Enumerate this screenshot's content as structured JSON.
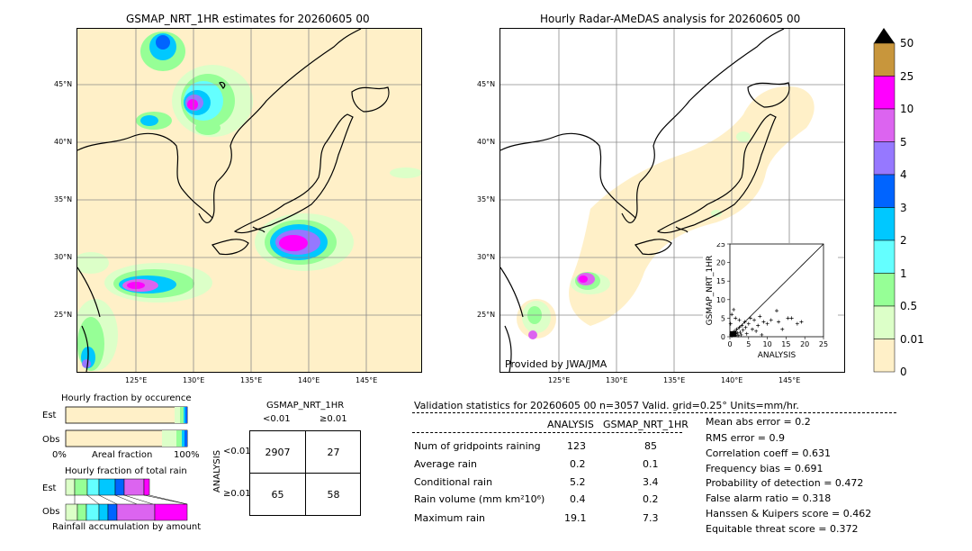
{
  "left_map": {
    "title": "GSMAP_NRT_1HR estimates for 20260605 00",
    "lat_labels": [
      "45°N",
      "40°N",
      "35°N",
      "30°N",
      "25°N"
    ],
    "lon_labels": [
      "125°E",
      "130°E",
      "135°E",
      "140°E",
      "145°E"
    ]
  },
  "right_map": {
    "title": "Hourly Radar-AMeDAS analysis for 20260605 00",
    "lat_labels": [
      "45°N",
      "40°N",
      "35°N",
      "30°N",
      "25°N"
    ],
    "lon_labels": [
      "125°E",
      "130°E",
      "135°E",
      "140°E",
      "145°E"
    ],
    "credit": "Provided by JWA/JMA"
  },
  "colorbar": {
    "labels": [
      "50",
      "25",
      "10",
      "5",
      "4",
      "3",
      "2",
      "1",
      "0.5",
      "0.01",
      "0"
    ],
    "colors": [
      "#c8963c",
      "#ff00ff",
      "#dc64f0",
      "#9678ff",
      "#0064ff",
      "#00c8ff",
      "#64ffff",
      "#96ff96",
      "#dcffc8",
      "#fff0c8"
    ],
    "extend_color": "#000000"
  },
  "scatter": {
    "xlabel": "ANALYSIS",
    "ylabel": "GSMAP_NRT_1HR",
    "ticks": [
      "0",
      "5",
      "10",
      "15",
      "20",
      "25"
    ]
  },
  "occurrence": {
    "title": "Hourly fraction by occurence",
    "rows": [
      "Est",
      "Obs"
    ],
    "axis_left": "0%",
    "axis_mid": "Areal fraction",
    "axis_right": "100%"
  },
  "total_rain": {
    "title": "Hourly fraction of total rain",
    "rows": [
      "Est",
      "Obs"
    ],
    "footer": "Rainfall accumulation by amount"
  },
  "contingency": {
    "title": "GSMAP_NRT_1HR",
    "col1": "<0.01",
    "col2": "≥0.01",
    "row_axis": "ANALYSIS",
    "row1": "<0.01",
    "row2": "≥0.01",
    "a": "2907",
    "b": "27",
    "c": "65",
    "d": "58"
  },
  "validation": {
    "header": "Validation statistics for 20260605 00  n=3057 Valid. grid=0.25° Units=mm/hr.",
    "col_analysis": "ANALYSIS",
    "col_gsmap": "GSMAP_NRT_1HR",
    "rows": [
      {
        "label": "Num of gridpoints raining",
        "analysis": "123",
        "gsmap": "85"
      },
      {
        "label": "Average rain",
        "analysis": "0.2",
        "gsmap": "0.1"
      },
      {
        "label": "Conditional rain",
        "analysis": "5.2",
        "gsmap": "3.4"
      },
      {
        "label": "Rain volume (mm km²10⁶)",
        "analysis": "0.4",
        "gsmap": "0.2"
      },
      {
        "label": "Maximum rain",
        "analysis": "19.1",
        "gsmap": "7.3"
      }
    ],
    "scores": [
      "Mean abs error =    0.2",
      "RMS error =    0.9",
      "Correlation coeff =  0.631",
      "Frequency bias =  0.691",
      "Probability of detection =  0.472",
      "False alarm ratio =  0.318",
      "Hanssen & Kuipers score =  0.462",
      "Equitable threat score =  0.372"
    ]
  },
  "chart_data": {
    "type": "scatter",
    "xlabel": "ANALYSIS",
    "ylabel": "GSMAP_NRT_1HR",
    "xlim": [
      0,
      25
    ],
    "ylim": [
      0,
      25
    ],
    "points": [
      [
        0.3,
        0.5
      ],
      [
        0.5,
        0.2
      ],
      [
        0.8,
        1.0
      ],
      [
        1.0,
        0.4
      ],
      [
        1.2,
        1.5
      ],
      [
        1.5,
        0.8
      ],
      [
        1.8,
        2.0
      ],
      [
        2.0,
        1.0
      ],
      [
        2.2,
        0.3
      ],
      [
        2.5,
        2.5
      ],
      [
        2.8,
        1.2
      ],
      [
        3.0,
        0.5
      ],
      [
        3.2,
        3.0
      ],
      [
        3.5,
        1.8
      ],
      [
        4.0,
        4.0
      ],
      [
        4.2,
        2.5
      ],
      [
        4.5,
        0.8
      ],
      [
        5.0,
        3.5
      ],
      [
        5.5,
        5.0
      ],
      [
        6.0,
        2.0
      ],
      [
        6.5,
        4.5
      ],
      [
        7.0,
        1.5
      ],
      [
        7.5,
        3.0
      ],
      [
        8.0,
        5.5
      ],
      [
        8.5,
        0.5
      ],
      [
        9.0,
        4.0
      ],
      [
        10.0,
        3.5
      ],
      [
        11.0,
        4.5
      ],
      [
        12.5,
        7.0
      ],
      [
        13.0,
        4.0
      ],
      [
        14.0,
        2.0
      ],
      [
        15.5,
        5.0
      ],
      [
        16.5,
        5.0
      ],
      [
        18.0,
        3.5
      ],
      [
        19.1,
        4.0
      ],
      [
        0.5,
        6.0
      ],
      [
        1.0,
        7.3
      ],
      [
        0.2,
        3.5
      ],
      [
        1.5,
        5.0
      ],
      [
        2.5,
        4.5
      ]
    ]
  }
}
